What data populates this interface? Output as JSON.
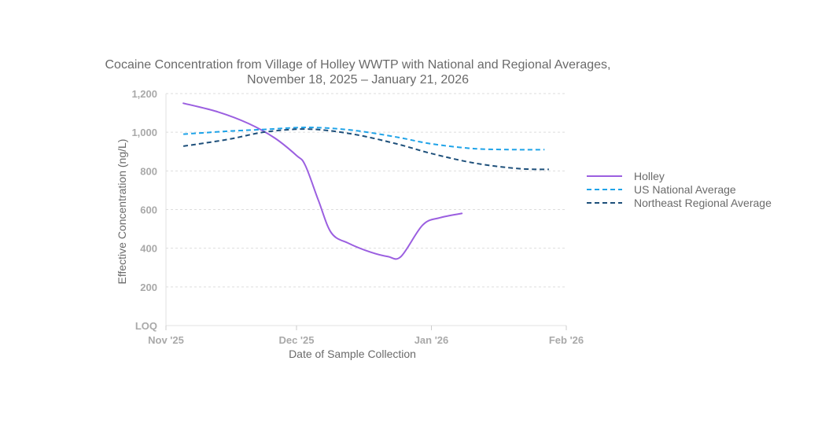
{
  "chart_data": {
    "type": "line",
    "title_lines": [
      "Cocaine Concentration from Village of Holley WWTP with National and Regional Averages,",
      "November 18, 2025 – January 21, 2026"
    ],
    "xlabel": "Date of Sample Collection",
    "ylabel": "Effective Concentration (ng/L)",
    "x_ticks": [
      {
        "date": "2025-11-01",
        "label": "Nov '25"
      },
      {
        "date": "2025-12-01",
        "label": "Dec '25"
      },
      {
        "date": "2026-01-01",
        "label": "Jan '26"
      },
      {
        "date": "2026-02-01",
        "label": "Feb '26"
      }
    ],
    "y_ticks": [
      {
        "value": 0,
        "label": "LOQ"
      },
      {
        "value": 200,
        "label": "200"
      },
      {
        "value": 400,
        "label": "400"
      },
      {
        "value": 600,
        "label": "600"
      },
      {
        "value": 800,
        "label": "800"
      },
      {
        "value": 1000,
        "label": "1,000"
      },
      {
        "value": 1200,
        "label": "1,200"
      }
    ],
    "xlim": [
      "2025-11-01",
      "2026-02-01"
    ],
    "ylim": [
      0,
      1200
    ],
    "grid": "horizontal dashed",
    "legend_position": "right",
    "series": [
      {
        "name": "Holley",
        "color": "#9b5fe0",
        "dash": "solid",
        "points": [
          {
            "x": "2025-11-05",
            "y": 1150
          },
          {
            "x": "2025-11-13",
            "y": 1105
          },
          {
            "x": "2025-11-20",
            "y": 1045
          },
          {
            "x": "2025-11-26",
            "y": 970
          },
          {
            "x": "2025-12-01",
            "y": 880
          },
          {
            "x": "2025-12-03",
            "y": 830
          },
          {
            "x": "2025-12-06",
            "y": 650
          },
          {
            "x": "2025-12-09",
            "y": 480
          },
          {
            "x": "2025-12-13",
            "y": 425
          },
          {
            "x": "2025-12-18",
            "y": 380
          },
          {
            "x": "2025-12-22",
            "y": 357
          },
          {
            "x": "2025-12-25",
            "y": 357
          },
          {
            "x": "2025-12-30",
            "y": 520
          },
          {
            "x": "2026-01-03",
            "y": 558
          },
          {
            "x": "2026-01-08",
            "y": 580
          }
        ]
      },
      {
        "name": "US National Average",
        "color": "#1fa3e8",
        "dash": "dashed",
        "points": [
          {
            "x": "2025-11-05",
            "y": 990
          },
          {
            "x": "2025-11-15",
            "y": 1005
          },
          {
            "x": "2025-11-24",
            "y": 1015
          },
          {
            "x": "2025-12-04",
            "y": 1025
          },
          {
            "x": "2025-12-14",
            "y": 1010
          },
          {
            "x": "2025-12-24",
            "y": 975
          },
          {
            "x": "2026-01-01",
            "y": 940
          },
          {
            "x": "2026-01-11",
            "y": 915
          },
          {
            "x": "2026-01-21",
            "y": 910
          },
          {
            "x": "2026-01-27",
            "y": 910
          }
        ]
      },
      {
        "name": "Northeast Regional Average",
        "color": "#1d4f7a",
        "dash": "dashed",
        "points": [
          {
            "x": "2025-11-05",
            "y": 928
          },
          {
            "x": "2025-11-15",
            "y": 962
          },
          {
            "x": "2025-11-24",
            "y": 1002
          },
          {
            "x": "2025-12-04",
            "y": 1016
          },
          {
            "x": "2025-12-14",
            "y": 990
          },
          {
            "x": "2025-12-24",
            "y": 940
          },
          {
            "x": "2026-01-01",
            "y": 890
          },
          {
            "x": "2026-01-11",
            "y": 840
          },
          {
            "x": "2026-01-21",
            "y": 812
          },
          {
            "x": "2026-01-28",
            "y": 808
          }
        ]
      }
    ]
  }
}
